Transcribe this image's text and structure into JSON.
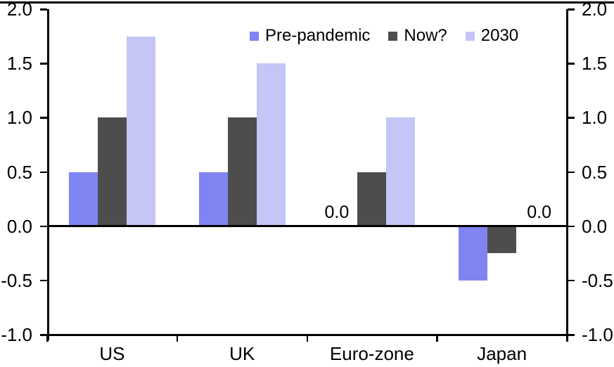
{
  "chart_data": {
    "type": "bar",
    "title": "",
    "categories": [
      "US",
      "UK",
      "Euro-zone",
      "Japan"
    ],
    "series": [
      {
        "name": "Pre-pandemic",
        "color": "#8084F2",
        "values": [
          0.5,
          0.5,
          0.0,
          -0.5
        ]
      },
      {
        "name": "Now?",
        "color": "#4D4D4D",
        "values": [
          1.0,
          1.0,
          0.5,
          -0.25
        ]
      },
      {
        "name": "2030",
        "color": "#C5C6F5",
        "values": [
          1.75,
          1.5,
          1.0,
          0.0
        ]
      }
    ],
    "ylim": [
      -1.0,
      2.0
    ],
    "ytick_labels": [
      "2.0",
      "1.5",
      "1.0",
      "0.5",
      "0.0",
      "-0.5",
      "-1.0"
    ],
    "ytick_values": [
      2.0,
      1.5,
      1.0,
      0.5,
      0.0,
      -0.5,
      -1.0
    ],
    "dual_y_axis": true,
    "grid": false,
    "legend_position": "top-center-inside",
    "zero_value_labels": [
      {
        "category_index": 2,
        "series_index": 0,
        "text": "0.0",
        "dx": -9
      },
      {
        "category_index": 3,
        "series_index": 2,
        "text": "0.0",
        "dx": 12
      }
    ]
  },
  "colors": {
    "axis": "#000000",
    "text": "#000000",
    "background": "#FFFFFF"
  }
}
